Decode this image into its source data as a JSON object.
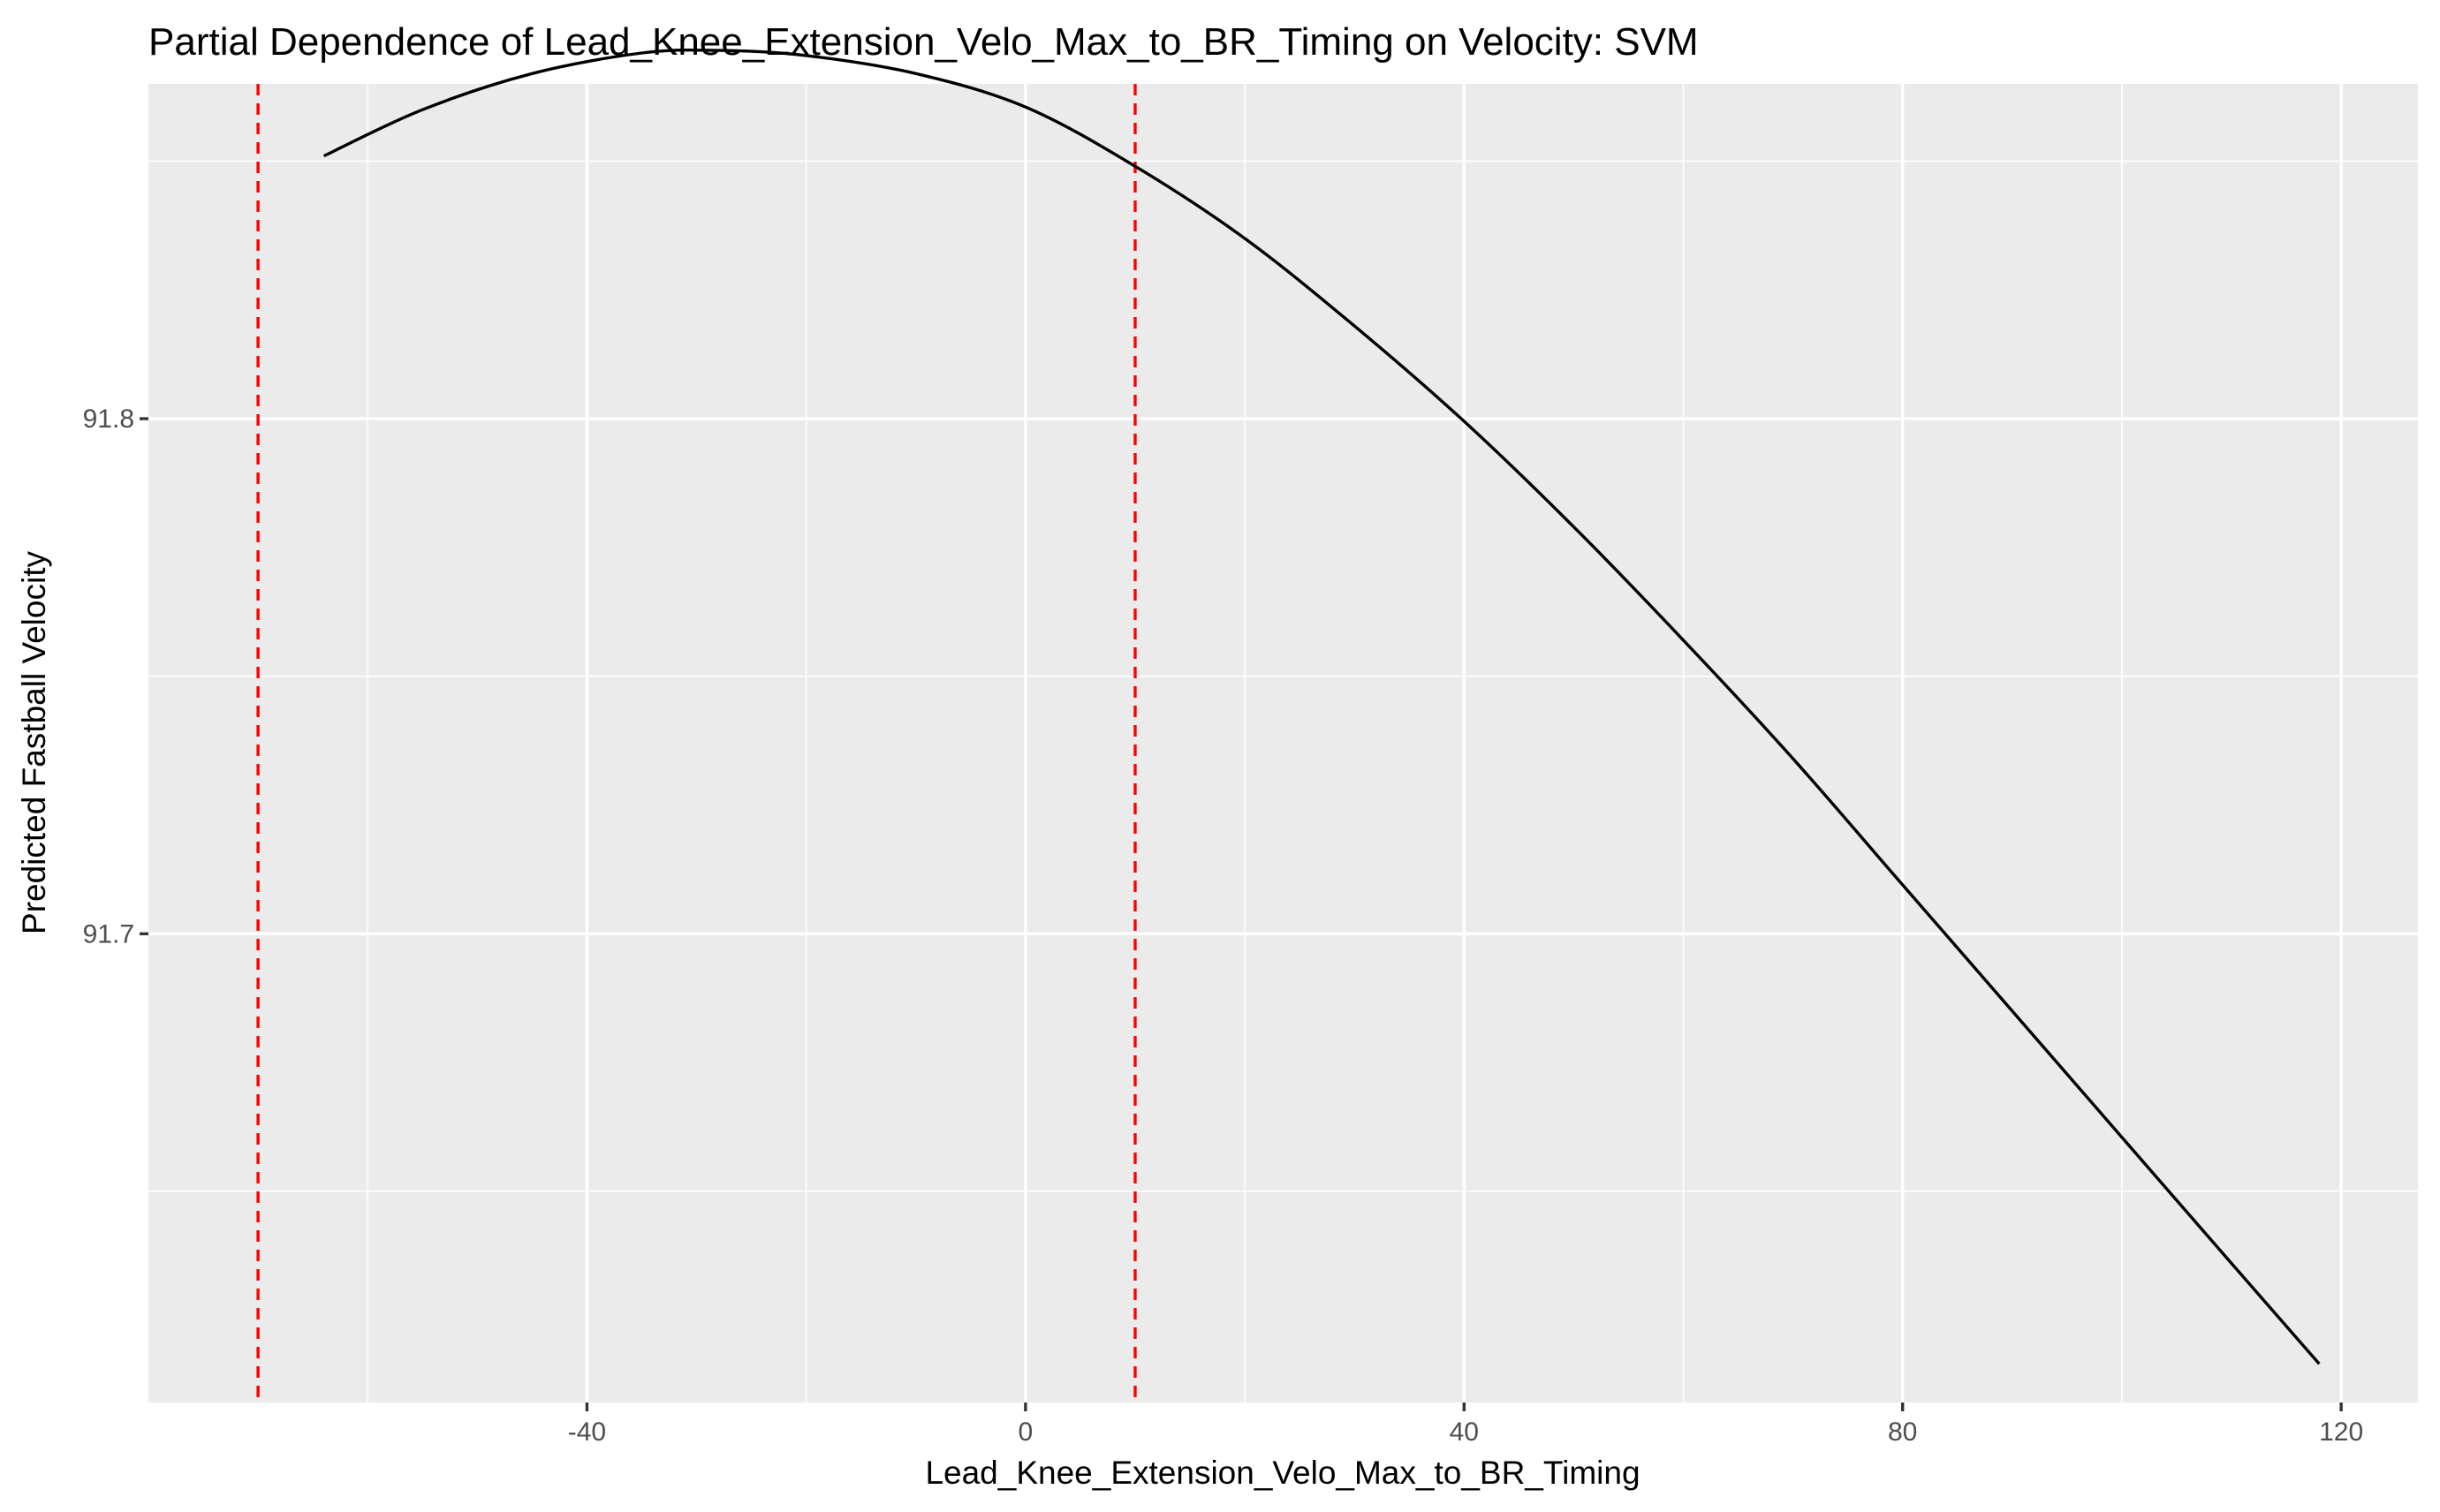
{
  "chart_data": {
    "type": "line",
    "title": "Partial Dependence of Lead_Knee_Extension_Velo_Max_to_BR_Timing on Velocity: SVM",
    "xlabel": "Lead_Knee_Extension_Velo_Max_to_BR_Timing",
    "ylabel": "Predicted Fastball Velocity",
    "xlim": [
      -80,
      127
    ],
    "ylim": [
      91.609,
      91.865
    ],
    "x_ticks": [
      -40,
      0,
      40,
      80,
      120
    ],
    "x_tick_labels": [
      "-40",
      "0",
      "40",
      "80",
      "120"
    ],
    "y_ticks": [
      91.7,
      91.8
    ],
    "y_tick_labels": [
      "91.7",
      "91.8"
    ],
    "grid": true,
    "panel_background": "#ebebeb",
    "grid_color": "#ffffff",
    "series": [
      {
        "color": "#000000",
        "x": [
          -64,
          -55,
          -45,
          -35,
          -28,
          -20,
          -10,
          0,
          10,
          20,
          30,
          40,
          50,
          60,
          70,
          80,
          90,
          100,
          110,
          118
        ],
        "y": [
          91.851,
          91.86,
          91.867,
          91.871,
          91.8715,
          91.8705,
          91.867,
          91.8605,
          91.849,
          91.835,
          91.818,
          91.7995,
          91.779,
          91.757,
          91.734,
          91.7095,
          91.685,
          91.6605,
          91.636,
          91.6165
        ]
      }
    ],
    "vlines": [
      {
        "x": -70,
        "color": "#ff0000",
        "style": "dashed"
      },
      {
        "x": 10,
        "color": "#ff0000",
        "style": "dashed"
      }
    ]
  }
}
